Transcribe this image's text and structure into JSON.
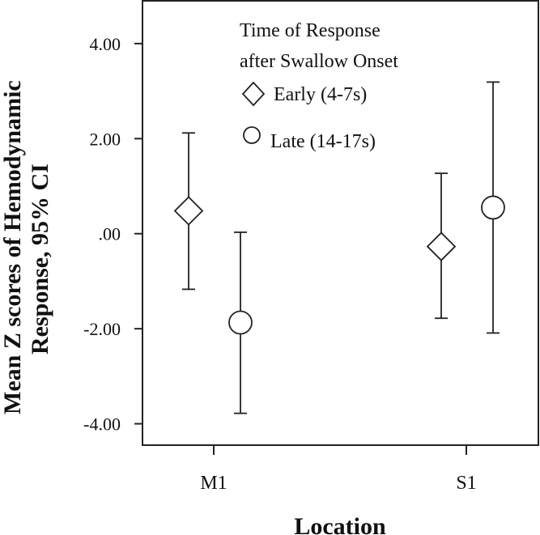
{
  "chart_data": {
    "type": "scatter",
    "categories": [
      "M1",
      "S1"
    ],
    "xlabel": "Location",
    "ylabel_line1": "Mean Z scores of Hemodynamic",
    "ylabel_line2": "Response, 95% CI",
    "yticks": [
      {
        "value": 4,
        "label": "4.00"
      },
      {
        "value": 2,
        "label": "2.00"
      },
      {
        "value": 0,
        "label": ".00"
      },
      {
        "value": -2,
        "label": "-2.00"
      },
      {
        "value": -4,
        "label": "-4.00"
      }
    ],
    "ylim": [
      -4.45,
      4.9
    ],
    "legend": {
      "title_line1": "Time of Response",
      "title_line2": "after Swallow Onset",
      "position": "top-center"
    },
    "series": [
      {
        "name": "Early (4-7s)",
        "marker": "diamond",
        "points": [
          {
            "category": "M1",
            "mean": 0.48,
            "ci_low": -1.17,
            "ci_high": 2.12
          },
          {
            "category": "S1",
            "mean": -0.27,
            "ci_low": -1.78,
            "ci_high": 1.27
          }
        ]
      },
      {
        "name": "Late (14-17s)",
        "marker": "circle",
        "points": [
          {
            "category": "M1",
            "mean": -1.87,
            "ci_low": -3.78,
            "ci_high": 0.03
          },
          {
            "category": "S1",
            "mean": 0.55,
            "ci_low": -2.09,
            "ci_high": 3.19
          }
        ]
      }
    ]
  }
}
